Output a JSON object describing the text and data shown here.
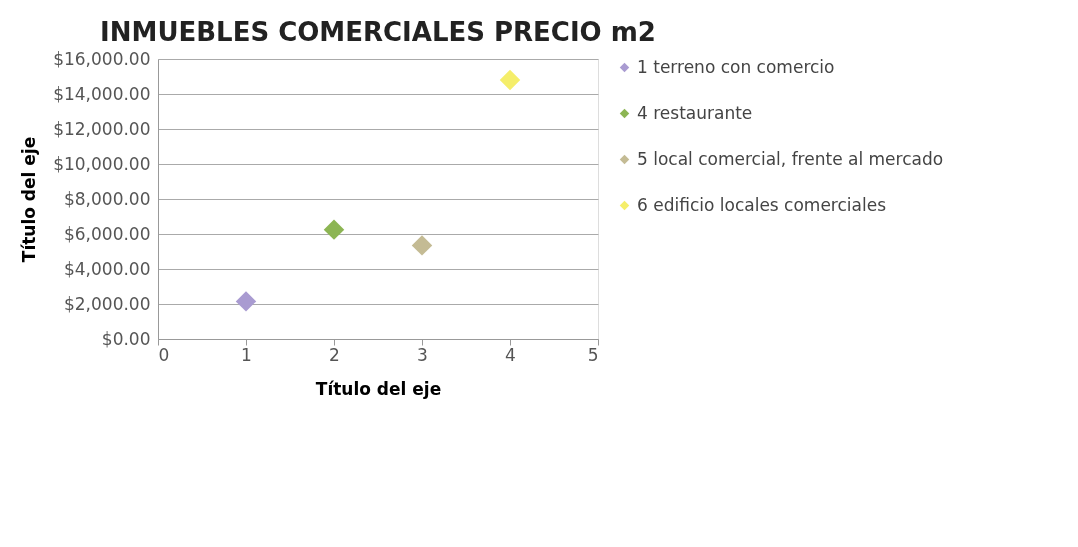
{
  "chart_data": {
    "type": "scatter",
    "title": "INMUEBLES COMERCIALES PRECIO m2",
    "xlabel": "Título del eje",
    "ylabel": "Título del eje",
    "series": [
      {
        "name": "1 terreno con comercio",
        "color": "#a99bd1",
        "x": [
          1
        ],
        "values": [
          2150
        ]
      },
      {
        "name": "4 restaurante",
        "color": "#8cb553",
        "x": [
          2
        ],
        "values": [
          6250
        ]
      },
      {
        "name": "5 local comercial, frente al mercado",
        "color": "#c4bb94",
        "x": [
          3
        ],
        "values": [
          5350
        ]
      },
      {
        "name": "6 edificio locales comerciales",
        "color": "#f5ee6a",
        "x": [
          4
        ],
        "values": [
          14800
        ]
      }
    ],
    "xlim": [
      0,
      5
    ],
    "xticks": [
      0,
      1,
      2,
      3,
      4,
      5
    ],
    "ylim": [
      0,
      16000
    ],
    "yticks": [
      {
        "value": 0,
        "label": "$0.00"
      },
      {
        "value": 2000,
        "label": "$2,000.00"
      },
      {
        "value": 4000,
        "label": "$4,000.00"
      },
      {
        "value": 6000,
        "label": "$6,000.00"
      },
      {
        "value": 8000,
        "label": "$8,000.00"
      },
      {
        "value": 10000,
        "label": "$10,000.00"
      },
      {
        "value": 12000,
        "label": "$12,000.00"
      },
      {
        "value": 14000,
        "label": "$14,000.00"
      },
      {
        "value": 16000,
        "label": "$16,000.00"
      }
    ],
    "grid": "y",
    "legend": "right",
    "marker": "diamond"
  }
}
